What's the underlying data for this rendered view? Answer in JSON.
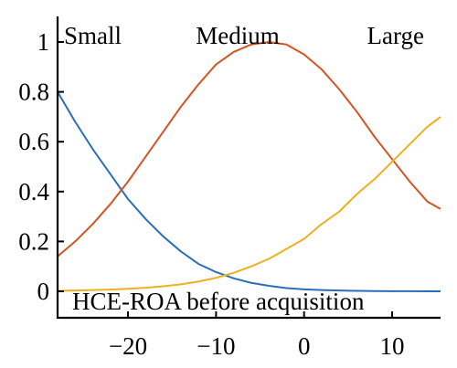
{
  "chart_data": {
    "type": "line",
    "xlim": [
      -28,
      15.5
    ],
    "ylim": [
      0,
      1
    ],
    "x_ticks": [
      -20,
      -10,
      0,
      10
    ],
    "y_ticks": [
      0,
      0.2,
      0.4,
      0.6,
      0.8,
      1
    ],
    "x_tick_labels": [
      "−20",
      "−10",
      "0",
      "10"
    ],
    "y_tick_labels": [
      "0",
      "0.2",
      "0.4",
      "0.6",
      "0.8",
      "1"
    ],
    "annotation": "HCE-ROA before acquisition",
    "grid": false,
    "series": [
      {
        "name": "Small",
        "color": "#2A6EBB",
        "x": [
          -28,
          -26,
          -24,
          -22,
          -20,
          -18,
          -16,
          -14,
          -12,
          -10,
          -8,
          -6,
          -4,
          -2,
          0,
          2,
          4,
          6,
          8,
          10,
          12,
          14,
          15.5
        ],
        "y": [
          0.8,
          0.68,
          0.57,
          0.47,
          0.37,
          0.29,
          0.22,
          0.16,
          0.11,
          0.077,
          0.052,
          0.034,
          0.022,
          0.013,
          0.008,
          0.005,
          0.003,
          0.002,
          0.001,
          0.0005,
          0.0003,
          0.0001,
          0
        ]
      },
      {
        "name": "Medium",
        "color": "#D35424",
        "x": [
          -28,
          -26,
          -24,
          -22,
          -20,
          -18,
          -16,
          -14,
          -12,
          -10,
          -8,
          -6,
          -4,
          -2,
          0,
          2,
          4,
          6,
          8,
          10,
          12,
          14,
          15.5
        ],
        "y": [
          0.14,
          0.2,
          0.27,
          0.35,
          0.44,
          0.54,
          0.64,
          0.74,
          0.83,
          0.91,
          0.96,
          0.99,
          1.0,
          0.99,
          0.95,
          0.89,
          0.81,
          0.72,
          0.62,
          0.53,
          0.44,
          0.36,
          0.33
        ]
      },
      {
        "name": "Large",
        "color": "#EDB120",
        "x": [
          -28,
          -26,
          -24,
          -22,
          -20,
          -18,
          -16,
          -14,
          -12,
          -10,
          -8,
          -6,
          -4,
          -2,
          0,
          2,
          4,
          6,
          8,
          10,
          12,
          14,
          15.5
        ],
        "y": [
          0.002,
          0.003,
          0.005,
          0.007,
          0.01,
          0.014,
          0.02,
          0.028,
          0.039,
          0.054,
          0.074,
          0.1,
          0.13,
          0.17,
          0.21,
          0.27,
          0.32,
          0.39,
          0.45,
          0.52,
          0.59,
          0.66,
          0.7
        ]
      }
    ]
  }
}
